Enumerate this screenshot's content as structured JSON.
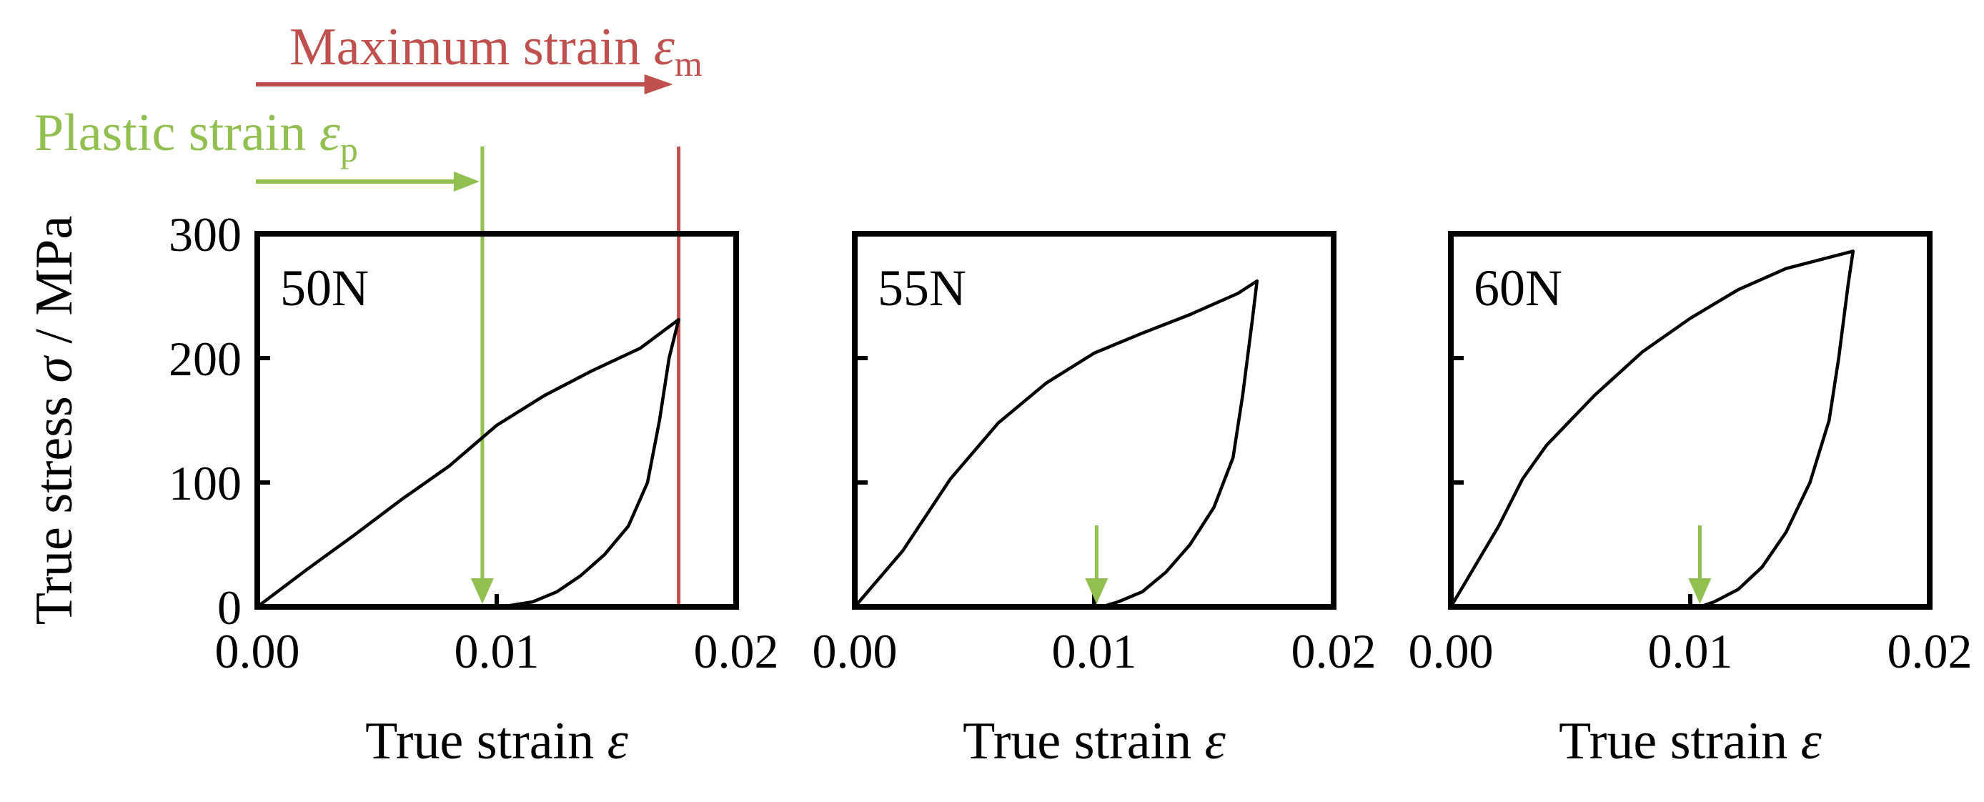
{
  "chart_data": [
    {
      "type": "line",
      "panel_label": "50N",
      "xlabel": "True strain",
      "xsymbol": "ε",
      "ylabel": "True stress",
      "ysymbol": "σ",
      "yunit": " / MPa",
      "xlim": [
        0,
        0.02
      ],
      "ylim": [
        0,
        300
      ],
      "xticks": [
        "0.00",
        "0.01",
        "0.02"
      ],
      "yticks": [
        "0",
        "100",
        "200",
        "300"
      ],
      "series": [
        {
          "points": [
            [
              0,
              0
            ],
            [
              0.002,
              29
            ],
            [
              0.004,
              57
            ],
            [
              0.006,
              86
            ],
            [
              0.008,
              113
            ],
            [
              0.01,
              146
            ],
            [
              0.012,
              170
            ],
            [
              0.014,
              190
            ],
            [
              0.016,
              208
            ],
            [
              0.0176,
              231
            ],
            [
              0.0172,
              200
            ],
            [
              0.0168,
              150
            ],
            [
              0.0163,
              100
            ],
            [
              0.0155,
              65
            ],
            [
              0.0145,
              42
            ],
            [
              0.0135,
              25
            ],
            [
              0.0125,
              12
            ],
            [
              0.0115,
              4
            ],
            [
              0.0105,
              1
            ],
            [
              0.0095,
              0
            ]
          ]
        }
      ],
      "annotations": {
        "plastic_strain": {
          "label": "Plastic strain",
          "symbol": "ε",
          "subscript": "p",
          "x": 0.0094,
          "color": "#92c050"
        },
        "maximum_strain": {
          "label": "Maximum strain",
          "symbol": "ε",
          "subscript": "m",
          "x": 0.0176,
          "color": "#c0504d"
        }
      }
    },
    {
      "type": "line",
      "panel_label": "55N",
      "xlabel": "True strain",
      "xsymbol": "ε",
      "xlim": [
        0,
        0.02
      ],
      "ylim": [
        0,
        300
      ],
      "xticks": [
        "0.00",
        "0.01",
        "0.02"
      ],
      "series": [
        {
          "points": [
            [
              0,
              0
            ],
            [
              0.002,
              45
            ],
            [
              0.004,
              103
            ],
            [
              0.006,
              148
            ],
            [
              0.008,
              180
            ],
            [
              0.01,
              204
            ],
            [
              0.012,
              220
            ],
            [
              0.014,
              235
            ],
            [
              0.016,
              252
            ],
            [
              0.0168,
              262
            ],
            [
              0.0166,
              230
            ],
            [
              0.0162,
              170
            ],
            [
              0.0158,
              120
            ],
            [
              0.015,
              80
            ],
            [
              0.014,
              50
            ],
            [
              0.013,
              28
            ],
            [
              0.012,
              12
            ],
            [
              0.011,
              4
            ],
            [
              0.0103,
              0
            ]
          ]
        }
      ],
      "annotations": {
        "plastic_strain_arrow_x": 0.0101
      }
    },
    {
      "type": "line",
      "panel_label": "60N",
      "xlabel": "True strain",
      "xsymbol": "ε",
      "xlim": [
        0,
        0.02
      ],
      "ylim": [
        0,
        300
      ],
      "xticks": [
        "0.00",
        "0.01",
        "0.02"
      ],
      "series": [
        {
          "points": [
            [
              0,
              0
            ],
            [
              0.002,
              65
            ],
            [
              0.003,
              103
            ],
            [
              0.004,
              130
            ],
            [
              0.006,
              170
            ],
            [
              0.008,
              205
            ],
            [
              0.01,
              232
            ],
            [
              0.012,
              255
            ],
            [
              0.014,
              272
            ],
            [
              0.016,
              282
            ],
            [
              0.0168,
              286
            ],
            [
              0.0166,
              260
            ],
            [
              0.0162,
              200
            ],
            [
              0.0158,
              150
            ],
            [
              0.015,
              100
            ],
            [
              0.014,
              60
            ],
            [
              0.013,
              32
            ],
            [
              0.012,
              14
            ],
            [
              0.011,
              4
            ],
            [
              0.0104,
              0
            ]
          ]
        }
      ],
      "annotations": {
        "plastic_strain_arrow_x": 0.0104
      }
    }
  ],
  "colors": {
    "axis": "#000000",
    "curve": "#000000",
    "plastic": "#92c050",
    "maximum": "#c0504d"
  }
}
